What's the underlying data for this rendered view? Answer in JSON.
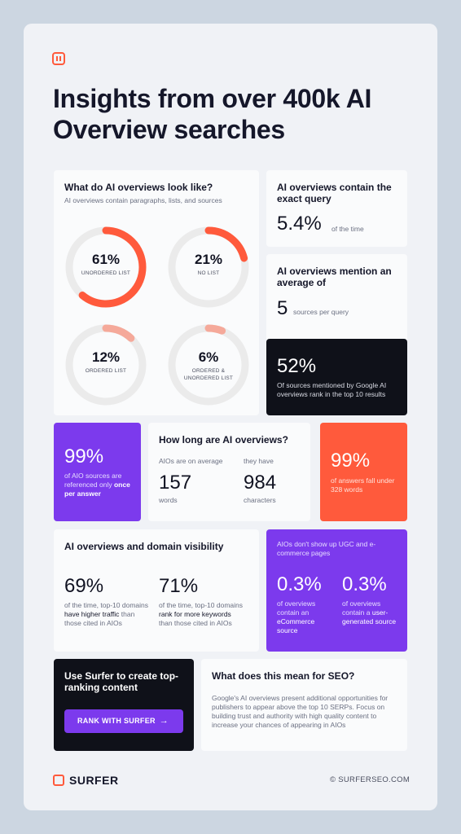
{
  "headline": "Insights from over 400k AI Overview searches",
  "colors": {
    "accent": "#ff5a3c",
    "purple": "#7c3aed",
    "dark": "#0f1119",
    "track": "#ebebeb",
    "light_arc": "#f5a99a"
  },
  "looks": {
    "title": "What do AI overviews look like?",
    "subtitle": "AI overviews contain paragraphs, lists, and sources",
    "donuts": [
      {
        "value": "61%",
        "fraction": 0.61,
        "label": "UNORDERED LIST",
        "color": "#ff5a3c"
      },
      {
        "value": "21%",
        "fraction": 0.21,
        "label": "NO LIST",
        "color": "#ff5a3c"
      },
      {
        "value": "12%",
        "fraction": 0.12,
        "label": "ORDERED LIST",
        "color": "#f5a99a"
      },
      {
        "value": "6%",
        "fraction": 0.06,
        "label": "ORDERED & UNORDERED LIST",
        "color": "#f5a99a"
      }
    ]
  },
  "exact": {
    "title": "AI overviews contain the exact query",
    "value": "5.4%",
    "note": "of the time"
  },
  "mention": {
    "title": "AI overviews mention an average of",
    "value": "5",
    "note": "sources per query"
  },
  "top10": {
    "value": "52%",
    "note": "Of sources mentioned by Google AI overviews rank in the top 10 results"
  },
  "once": {
    "value": "99%",
    "note_pre": "of AIO sources are referenced only ",
    "note_bold": "once per answer"
  },
  "length": {
    "title": "How long are AI overviews?",
    "words_caption": "AIOs are on average",
    "words_value": "157",
    "words_unit": "words",
    "chars_caption": "they have",
    "chars_value": "984",
    "chars_unit": "characters"
  },
  "under": {
    "value": "99%",
    "note": "of answers fall under 328 words"
  },
  "domain": {
    "title": "AI overviews and domain visibility",
    "left_value": "69%",
    "left_pre": "of the time, top-10 domains ",
    "left_bold": "have higher traffic",
    "left_post": " than those cited in AIOs",
    "right_value": "71%",
    "right_pre": "of the time, top-10 domains ",
    "right_bold": "rank for more keywords",
    "right_post": " than those cited in AIOs"
  },
  "ugc": {
    "heading": "AIOs don't show up UGC and e-commerce pages",
    "left_value": "0.3%",
    "left_pre": "of overviews contain an ",
    "left_bold": "eCommerce source",
    "right_value": "0.3%",
    "right_pre": "of overviews contain a ",
    "right_bold": "user-generated source"
  },
  "cta": {
    "title": "Use Surfer to create top-ranking content",
    "button": "RANK WITH SURFER",
    "arrow": "→"
  },
  "seo": {
    "title": "What does this mean for SEO?",
    "body": "Google's AI overviews present additional opportunities for publishers to appear above the top 10 SERPs. Focus on building trust and authority with high quality content to increase your chances of appearing in AIOs"
  },
  "footer": {
    "brand": "SURFER",
    "site": "© SURFERSEO.COM"
  }
}
